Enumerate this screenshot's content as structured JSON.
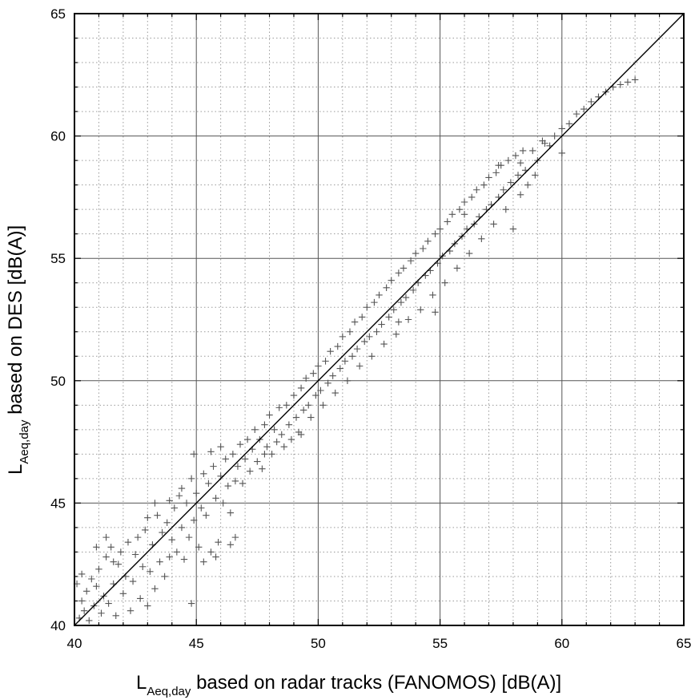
{
  "chart_data": {
    "type": "scatter",
    "title": "",
    "xlabel": {
      "main": "L",
      "sub": "Aeq,day",
      "rest": " based on radar tracks (FANOMOS) [dB(A)]"
    },
    "ylabel": {
      "main": "L",
      "sub": "Aeq,day",
      "rest": " based on DES [dB(A)]"
    },
    "xlim": [
      40,
      65
    ],
    "ylim": [
      40,
      65
    ],
    "xticks": [
      "40",
      "45",
      "50",
      "55",
      "60",
      "65"
    ],
    "yticks": [
      "40",
      "45",
      "50",
      "55",
      "60",
      "65"
    ],
    "grid": true,
    "minor_grid": true,
    "marker": "+",
    "marker_color": "#555555",
    "reference_line": {
      "x": [
        40,
        65
      ],
      "y": [
        40,
        65
      ]
    },
    "series": [
      {
        "values": [
          [
            40.2,
            40.3
          ],
          [
            40.3,
            41.0
          ],
          [
            40.4,
            40.6
          ],
          [
            40.5,
            41.4
          ],
          [
            40.6,
            40.2
          ],
          [
            40.7,
            41.9
          ],
          [
            40.8,
            40.8
          ],
          [
            40.9,
            41.6
          ],
          [
            41.0,
            42.3
          ],
          [
            41.1,
            40.5
          ],
          [
            41.2,
            41.2
          ],
          [
            41.3,
            42.8
          ],
          [
            41.4,
            40.9
          ],
          [
            41.5,
            43.2
          ],
          [
            41.6,
            41.7
          ],
          [
            41.7,
            40.4
          ],
          [
            41.8,
            42.5
          ],
          [
            41.9,
            43.0
          ],
          [
            42.0,
            41.3
          ],
          [
            42.1,
            42.0
          ],
          [
            42.2,
            43.4
          ],
          [
            42.3,
            40.6
          ],
          [
            42.4,
            41.8
          ],
          [
            42.5,
            42.9
          ],
          [
            42.6,
            43.6
          ],
          [
            42.7,
            41.1
          ],
          [
            42.8,
            42.4
          ],
          [
            42.9,
            43.9
          ],
          [
            43.0,
            40.8
          ],
          [
            43.1,
            42.2
          ],
          [
            43.2,
            43.3
          ],
          [
            43.3,
            41.5
          ],
          [
            43.4,
            44.5
          ],
          [
            43.5,
            42.6
          ],
          [
            43.6,
            43.8
          ],
          [
            43.7,
            42.0
          ],
          [
            43.8,
            44.2
          ],
          [
            43.9,
            42.8
          ],
          [
            44.0,
            43.5
          ],
          [
            44.1,
            44.8
          ],
          [
            44.2,
            43.0
          ],
          [
            44.3,
            45.3
          ],
          [
            44.4,
            44.0
          ],
          [
            44.5,
            42.7
          ],
          [
            44.6,
            45.0
          ],
          [
            44.7,
            43.6
          ],
          [
            44.8,
            46.0
          ],
          [
            44.9,
            44.3
          ],
          [
            45.0,
            45.4
          ],
          [
            45.1,
            43.2
          ],
          [
            45.2,
            44.8
          ],
          [
            45.3,
            46.2
          ],
          [
            45.4,
            44.5
          ],
          [
            45.5,
            45.8
          ],
          [
            45.6,
            43.0
          ],
          [
            45.7,
            46.5
          ],
          [
            45.8,
            45.2
          ],
          [
            45.9,
            43.4
          ],
          [
            46.0,
            46.1
          ],
          [
            46.1,
            45.0
          ],
          [
            46.2,
            46.8
          ],
          [
            46.3,
            45.7
          ],
          [
            46.4,
            44.6
          ],
          [
            46.5,
            47.0
          ],
          [
            46.6,
            45.9
          ],
          [
            46.7,
            46.5
          ],
          [
            46.8,
            47.4
          ],
          [
            46.9,
            45.8
          ],
          [
            47.0,
            46.8
          ],
          [
            47.1,
            47.6
          ],
          [
            47.2,
            46.3
          ],
          [
            47.3,
            47.2
          ],
          [
            47.4,
            48.0
          ],
          [
            47.5,
            46.7
          ],
          [
            47.6,
            47.6
          ],
          [
            47.7,
            46.4
          ],
          [
            47.8,
            48.2
          ],
          [
            47.9,
            47.3
          ],
          [
            48.0,
            48.6
          ],
          [
            48.1,
            47.0
          ],
          [
            48.2,
            48.0
          ],
          [
            48.3,
            47.5
          ],
          [
            48.4,
            48.9
          ],
          [
            48.5,
            47.8
          ],
          [
            48.6,
            47.3
          ],
          [
            48.7,
            49.0
          ],
          [
            48.8,
            48.2
          ],
          [
            48.9,
            47.6
          ],
          [
            49.0,
            49.4
          ],
          [
            49.1,
            48.5
          ],
          [
            49.2,
            47.9
          ],
          [
            49.3,
            49.7
          ],
          [
            49.4,
            48.8
          ],
          [
            49.5,
            50.1
          ],
          [
            49.6,
            49.0
          ],
          [
            49.7,
            48.5
          ],
          [
            49.8,
            50.3
          ],
          [
            49.9,
            49.4
          ],
          [
            50.0,
            50.6
          ],
          [
            50.1,
            49.6
          ],
          [
            50.2,
            49.0
          ],
          [
            50.3,
            50.8
          ],
          [
            50.4,
            49.9
          ],
          [
            50.5,
            51.2
          ],
          [
            50.6,
            50.2
          ],
          [
            50.7,
            49.5
          ],
          [
            50.8,
            51.4
          ],
          [
            50.9,
            50.5
          ],
          [
            51.0,
            51.8
          ],
          [
            51.1,
            50.8
          ],
          [
            51.2,
            50.0
          ],
          [
            51.3,
            52.0
          ],
          [
            51.4,
            51.0
          ],
          [
            51.5,
            52.4
          ],
          [
            51.6,
            51.3
          ],
          [
            51.7,
            50.6
          ],
          [
            51.8,
            52.6
          ],
          [
            51.9,
            51.6
          ],
          [
            52.0,
            53.0
          ],
          [
            52.1,
            51.8
          ],
          [
            52.2,
            51.0
          ],
          [
            52.3,
            53.2
          ],
          [
            52.4,
            52.0
          ],
          [
            52.5,
            53.5
          ],
          [
            52.6,
            52.3
          ],
          [
            52.7,
            51.5
          ],
          [
            52.8,
            53.8
          ],
          [
            52.9,
            52.6
          ],
          [
            53.0,
            54.1
          ],
          [
            53.1,
            52.9
          ],
          [
            53.2,
            51.9
          ],
          [
            53.3,
            54.4
          ],
          [
            53.4,
            53.2
          ],
          [
            53.5,
            54.6
          ],
          [
            53.6,
            53.4
          ],
          [
            53.7,
            52.5
          ],
          [
            53.8,
            54.9
          ],
          [
            53.9,
            53.7
          ],
          [
            54.0,
            55.2
          ],
          [
            54.1,
            54.0
          ],
          [
            54.2,
            52.9
          ],
          [
            54.3,
            55.4
          ],
          [
            54.4,
            54.3
          ],
          [
            54.5,
            55.7
          ],
          [
            54.6,
            54.5
          ],
          [
            54.7,
            53.5
          ],
          [
            54.8,
            56.0
          ],
          [
            54.9,
            54.8
          ],
          [
            55.0,
            56.2
          ],
          [
            55.1,
            55.1
          ],
          [
            55.2,
            54.0
          ],
          [
            55.3,
            56.5
          ],
          [
            55.4,
            55.3
          ],
          [
            55.5,
            56.8
          ],
          [
            55.6,
            55.6
          ],
          [
            55.7,
            54.6
          ],
          [
            55.8,
            57.0
          ],
          [
            55.9,
            55.9
          ],
          [
            56.0,
            57.3
          ],
          [
            56.1,
            56.2
          ],
          [
            56.2,
            55.2
          ],
          [
            56.3,
            57.5
          ],
          [
            56.4,
            56.4
          ],
          [
            56.5,
            57.8
          ],
          [
            56.6,
            56.7
          ],
          [
            56.7,
            55.8
          ],
          [
            56.8,
            58.0
          ],
          [
            56.9,
            57.0
          ],
          [
            57.0,
            58.3
          ],
          [
            57.1,
            57.2
          ],
          [
            57.2,
            56.4
          ],
          [
            57.3,
            58.5
          ],
          [
            57.4,
            57.5
          ],
          [
            57.5,
            58.8
          ],
          [
            57.6,
            57.8
          ],
          [
            57.7,
            57.0
          ],
          [
            57.8,
            59.0
          ],
          [
            57.9,
            58.1
          ],
          [
            58.0,
            56.2
          ],
          [
            58.1,
            59.2
          ],
          [
            58.2,
            58.4
          ],
          [
            58.3,
            57.6
          ],
          [
            58.4,
            59.4
          ],
          [
            58.5,
            58.6
          ],
          [
            58.6,
            58.0
          ],
          [
            58.8,
            59.4
          ],
          [
            59.0,
            59.0
          ],
          [
            59.2,
            59.8
          ],
          [
            59.3,
            59.7
          ],
          [
            59.5,
            59.6
          ],
          [
            59.7,
            60.0
          ],
          [
            60.0,
            60.3
          ],
          [
            60.3,
            60.5
          ],
          [
            60.6,
            60.9
          ],
          [
            60.9,
            61.1
          ],
          [
            61.2,
            61.4
          ],
          [
            61.5,
            61.6
          ],
          [
            61.8,
            61.8
          ],
          [
            62.1,
            62.0
          ],
          [
            62.4,
            62.1
          ],
          [
            62.7,
            62.2
          ],
          [
            63.0,
            62.3
          ],
          [
            40.1,
            41.7
          ],
          [
            40.3,
            42.1
          ],
          [
            40.9,
            43.2
          ],
          [
            41.3,
            43.6
          ],
          [
            41.6,
            42.6
          ],
          [
            43.0,
            44.4
          ],
          [
            43.9,
            45.1
          ],
          [
            44.4,
            45.6
          ],
          [
            44.9,
            47.0
          ],
          [
            45.6,
            47.1
          ],
          [
            46.0,
            47.3
          ],
          [
            46.4,
            43.3
          ],
          [
            46.6,
            43.6
          ],
          [
            45.8,
            42.8
          ],
          [
            45.3,
            42.6
          ],
          [
            44.8,
            40.9
          ],
          [
            43.3,
            45.0
          ],
          [
            47.8,
            47.0
          ],
          [
            49.3,
            47.8
          ],
          [
            53.3,
            52.4
          ],
          [
            54.8,
            52.8
          ],
          [
            56.0,
            56.8
          ],
          [
            57.4,
            58.8
          ],
          [
            58.3,
            58.9
          ],
          [
            58.9,
            58.4
          ],
          [
            60.0,
            59.3
          ]
        ]
      }
    ]
  }
}
